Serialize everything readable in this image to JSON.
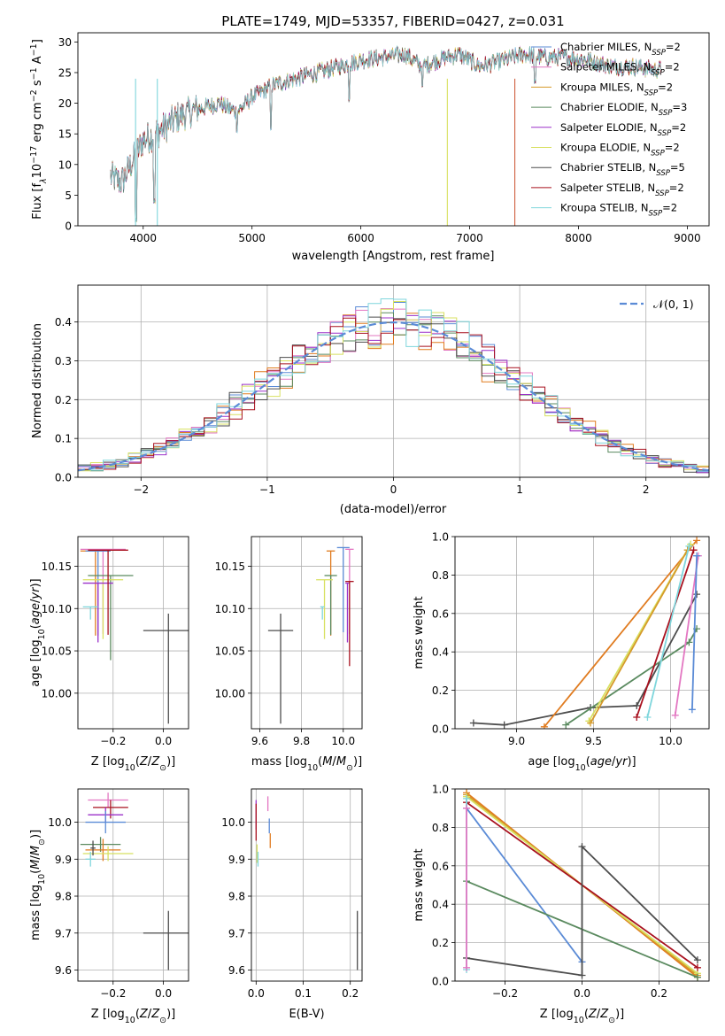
{
  "title_parts": [
    "PLATE=1749, MJD=53357, FIBERID=0427, z=0.031"
  ],
  "colors": {
    "grid": "#b0b0b0",
    "mainline": "#7fd6dc",
    "normal": "#5b8bd6"
  },
  "chart_data": [
    {
      "id": "spectrum",
      "type": "line",
      "title": "PLATE=1749, MJD=53357, FIBERID=0427, z=0.031",
      "xlabel": "wavelength [Angstrom, rest frame]",
      "ylabel_parts": [
        "Flux [f",
        "λ",
        "10",
        "−17",
        " erg cm",
        "−2",
        " s",
        "−1",
        " A",
        "−1",
        "]"
      ],
      "xlim": [
        3400,
        9200
      ],
      "ylim": [
        0,
        31.5
      ],
      "xticks": [
        4000,
        5000,
        6000,
        7000,
        8000,
        9000
      ],
      "yticks": [
        0,
        5,
        10,
        15,
        20,
        25,
        30
      ],
      "grid": false,
      "legend_loc": "upper right",
      "spectrum_shape": {
        "x": [
          3700,
          3800,
          3900,
          4000,
          4100,
          4200,
          4300,
          4500,
          4700,
          4860,
          5000,
          5200,
          5400,
          5600,
          5800,
          6000,
          6200,
          6400,
          6563,
          6700,
          6900,
          7100,
          7300,
          7500,
          7700,
          7900,
          8100,
          8300,
          8500,
          8700
        ],
        "y": [
          8,
          7,
          10.5,
          14,
          15,
          16,
          17.5,
          19,
          20,
          18.5,
          21,
          23,
          24,
          25,
          26,
          27,
          27.5,
          28,
          26,
          27,
          28,
          26,
          27,
          28,
          27.5,
          27.5,
          27,
          26,
          26,
          25.5
        ],
        "noise_amplitude": 2.5,
        "absorption_lines": [
          {
            "x": 3934,
            "y": 1
          },
          {
            "x": 4102,
            "y": 4
          },
          {
            "x": 4861,
            "y": 15.5
          },
          {
            "x": 5175,
            "y": 16
          },
          {
            "x": 5894,
            "y": 20.5
          },
          {
            "x": 6563,
            "y": 23
          },
          {
            "x": 7600,
            "y": 23.5
          }
        ],
        "dropouts": [
          {
            "x": 6795,
            "y": 0
          },
          {
            "x": 7415,
            "y": 0
          },
          {
            "x": 4130,
            "y": 0
          },
          {
            "x": 3930,
            "y": 0
          }
        ]
      },
      "series": [
        {
          "label": "Chabrier MILES, N",
          "sub": "SSP",
          "value_text": "=2",
          "color": "#5b8bd6"
        },
        {
          "label": "Salpeter MILES, N",
          "sub": "SSP",
          "value_text": "=2",
          "color": "#e377c2"
        },
        {
          "label": "Kroupa MILES, N",
          "sub": "SSP",
          "value_text": "=2",
          "color": "#d69a2a"
        },
        {
          "label": "Chabrier ELODIE, N",
          "sub": "SSP",
          "value_text": "=3",
          "color": "#5a8a5f"
        },
        {
          "label": "Salpeter ELODIE, N",
          "sub": "SSP",
          "value_text": "=2",
          "color": "#9b30c9"
        },
        {
          "label": "Kroupa ELODIE, N",
          "sub": "SSP",
          "value_text": "=2",
          "color": "#d8e060"
        },
        {
          "label": "Chabrier STELIB, N",
          "sub": "SSP",
          "value_text": "=5",
          "color": "#4d4d4d"
        },
        {
          "label": "Salpeter STELIB, N",
          "sub": "SSP",
          "value_text": "=2",
          "color": "#a8101e"
        },
        {
          "label": "Kroupa STELIB, N",
          "sub": "SSP",
          "value_text": "=2",
          "color": "#7fd6dc"
        }
      ]
    },
    {
      "id": "residuals",
      "type": "line",
      "xlabel": "(data-model)/error",
      "ylabel": "Normed distribution",
      "xlim": [
        -2.5,
        2.5
      ],
      "ylim": [
        0,
        0.495
      ],
      "xticks": [
        -2,
        -1,
        0,
        1,
        2
      ],
      "yticks": [
        0.0,
        0.1,
        0.2,
        0.3,
        0.4
      ],
      "grid": true,
      "legend_loc": "upper right",
      "legend": "𝒩(0, 1)",
      "normal_curve": {
        "mu": 0,
        "sigma": 1,
        "color": "#5b8bd6",
        "style": "dashed"
      },
      "histogram_bin_edges_range": [
        -2.5,
        2.5
      ],
      "histogram_bin_count": 50,
      "histogram_colors": [
        "#5b8bd6",
        "#e377c2",
        "#e07b1f",
        "#5a8a5f",
        "#9b30c9",
        "#d8e060",
        "#4d4d4d",
        "#a8101e",
        "#7fd6dc"
      ]
    },
    {
      "id": "age-vs-z",
      "type": "scatter",
      "xlabel": "Z [log10(Z/Z⊙)]",
      "ylabel": "age  [log10(age/yr)]",
      "xlim": [
        -0.34,
        0.1
      ],
      "ylim": [
        9.958,
        10.185
      ],
      "xticks": [
        -0.2,
        0.0
      ],
      "yticks": [
        10.0,
        10.05,
        10.1,
        10.15
      ],
      "grid": true,
      "points": [
        {
          "x": -0.24,
          "y": 10.17,
          "xerr": [
            0.09,
            0.09
          ],
          "yerr": [
            0.1,
            0.0
          ],
          "color": "#e377c2"
        },
        {
          "x": -0.27,
          "y": 10.168,
          "xerr": [
            0.06,
            0.06
          ],
          "yerr": [
            0.1,
            0.0
          ],
          "color": "#e07b1f"
        },
        {
          "x": -0.26,
          "y": 10.168,
          "xerr": [
            0.05,
            0.05
          ],
          "yerr": [
            0.1,
            0.0
          ],
          "color": "#5b8bd6"
        },
        {
          "x": -0.21,
          "y": 10.139,
          "xerr": [
            0.09,
            0.09
          ],
          "yerr": [
            0.1,
            0.0
          ],
          "color": "#5a8a5f"
        },
        {
          "x": -0.24,
          "y": 10.134,
          "xerr": [
            0.08,
            0.08
          ],
          "yerr": [
            0.07,
            0.0
          ],
          "color": "#d8e060"
        },
        {
          "x": -0.26,
          "y": 10.13,
          "xerr": [
            0.06,
            0.06
          ],
          "yerr": [
            0.07,
            0.0
          ],
          "color": "#9b30c9"
        },
        {
          "x": -0.22,
          "y": 10.169,
          "xerr": [
            0.08,
            0.08
          ],
          "yerr": [
            0.1,
            0.0
          ],
          "color": "#a8101e"
        },
        {
          "x": -0.29,
          "y": 10.102,
          "xerr": [
            0.03,
            0.03
          ],
          "yerr": [
            0.015,
            0.0
          ],
          "color": "#7fd6dc"
        },
        {
          "x": 0.02,
          "y": 10.074,
          "xerr": [
            0.1,
            0.1
          ],
          "yerr": [
            0.11,
            0.02
          ],
          "color": "#4d4d4d"
        }
      ]
    },
    {
      "id": "age-vs-mass",
      "type": "scatter",
      "xlabel": "mass [log10(M/M⊙)]",
      "xlim": [
        9.56,
        10.09
      ],
      "ylim": [
        9.958,
        10.185
      ],
      "xticks": [
        9.6,
        9.8,
        10.0
      ],
      "yticks": [
        10.0,
        10.05,
        10.1,
        10.15
      ],
      "grid": true,
      "points": [
        {
          "x": 10.03,
          "y": 10.17,
          "xerr": [
            0.02,
            0.02
          ],
          "yerr": [
            0.1,
            0.0
          ],
          "color": "#e377c2"
        },
        {
          "x": 9.94,
          "y": 10.168,
          "xerr": [
            0.02,
            0.02
          ],
          "yerr": [
            0.1,
            0.0
          ],
          "color": "#e07b1f"
        },
        {
          "x": 10.0,
          "y": 10.172,
          "xerr": [
            0.03,
            0.03
          ],
          "yerr": [
            0.1,
            0.0
          ],
          "color": "#5b8bd6"
        },
        {
          "x": 9.94,
          "y": 10.139,
          "xerr": [
            0.03,
            0.03
          ],
          "yerr": [
            0.07,
            0.0
          ],
          "color": "#5a8a5f"
        },
        {
          "x": 9.91,
          "y": 10.134,
          "xerr": [
            0.04,
            0.04
          ],
          "yerr": [
            0.07,
            0.0
          ],
          "color": "#d8e060"
        },
        {
          "x": 10.02,
          "y": 10.13,
          "xerr": [
            0.01,
            0.01
          ],
          "yerr": [
            0.07,
            0.0
          ],
          "color": "#9b30c9"
        },
        {
          "x": 10.03,
          "y": 10.132,
          "xerr": [
            0.02,
            0.02
          ],
          "yerr": [
            0.1,
            0.0
          ],
          "color": "#a8101e"
        },
        {
          "x": 9.9,
          "y": 10.102,
          "xerr": [
            0.01,
            0.01
          ],
          "yerr": [
            0.015,
            0.0
          ],
          "color": "#7fd6dc"
        },
        {
          "x": 9.7,
          "y": 10.074,
          "xerr": [
            0.06,
            0.06
          ],
          "yerr": [
            0.11,
            0.02
          ],
          "color": "#4d4d4d"
        }
      ]
    },
    {
      "id": "weight-vs-age",
      "type": "line",
      "xlabel": "age  [log10(age/yr)]",
      "ylabel": "mass weight",
      "xlim": [
        8.6,
        10.25
      ],
      "ylim": [
        0.0,
        1.0
      ],
      "xticks": [
        9.0,
        9.5,
        10.0
      ],
      "yticks": [
        0.0,
        0.2,
        0.4,
        0.6,
        0.8,
        1.0
      ],
      "grid": true,
      "series": [
        {
          "color": "#4d4d4d",
          "x": [
            8.72,
            8.92,
            9.48,
            9.78,
            10.17
          ],
          "y": [
            0.03,
            0.02,
            0.11,
            0.12,
            0.7
          ]
        },
        {
          "color": "#e07b1f",
          "x": [
            9.18,
            10.17
          ],
          "y": [
            0.01,
            0.98
          ]
        },
        {
          "color": "#5a8a5f",
          "x": [
            9.32,
            10.12,
            10.17
          ],
          "y": [
            0.02,
            0.45,
            0.52
          ]
        },
        {
          "color": "#d8e060",
          "x": [
            9.47,
            10.13
          ],
          "y": [
            0.04,
            0.96
          ]
        },
        {
          "color": "#d69a2a",
          "x": [
            9.48,
            10.11
          ],
          "y": [
            0.03,
            0.93
          ]
        },
        {
          "color": "#a8101e",
          "x": [
            9.78,
            10.15
          ],
          "y": [
            0.06,
            0.93
          ]
        },
        {
          "color": "#7fd6dc",
          "x": [
            9.85,
            10.12
          ],
          "y": [
            0.06,
            0.95
          ]
        },
        {
          "color": "#e377c2",
          "x": [
            10.03,
            10.18
          ],
          "y": [
            0.07,
            0.9
          ]
        },
        {
          "color": "#5b8bd6",
          "x": [
            10.14,
            10.17
          ],
          "y": [
            0.1,
            0.9
          ]
        }
      ]
    },
    {
      "id": "mass-vs-z",
      "type": "scatter",
      "xlabel": "Z [log10(Z/Z⊙)]",
      "ylabel": "mass [log10(M/M⊙)]",
      "xlim": [
        -0.34,
        0.1
      ],
      "ylim": [
        9.57,
        10.09
      ],
      "xticks": [
        -0.2,
        0.0
      ],
      "yticks": [
        9.6,
        9.7,
        9.8,
        9.9,
        10.0
      ],
      "grid": true,
      "points": [
        {
          "x": -0.22,
          "y": 10.06,
          "xerr": [
            0.08,
            0.08
          ],
          "yerr": [
            0.02,
            0.02
          ],
          "color": "#e377c2"
        },
        {
          "x": -0.21,
          "y": 10.04,
          "xerr": [
            0.07,
            0.07
          ],
          "yerr": [
            0.03,
            0.02
          ],
          "color": "#a8101e"
        },
        {
          "x": -0.23,
          "y": 10.02,
          "xerr": [
            0.07,
            0.07
          ],
          "yerr": [
            0.02,
            0.02
          ],
          "color": "#9b30c9"
        },
        {
          "x": -0.23,
          "y": 10.0,
          "xerr": [
            0.08,
            0.08
          ],
          "yerr": [
            0.03,
            0.03
          ],
          "color": "#5b8bd6"
        },
        {
          "x": -0.25,
          "y": 9.94,
          "xerr": [
            0.08,
            0.08
          ],
          "yerr": [
            0.02,
            0.02
          ],
          "color": "#5a8a5f"
        },
        {
          "x": -0.24,
          "y": 9.925,
          "xerr": [
            0.07,
            0.07
          ],
          "yerr": [
            0.03,
            0.03
          ],
          "color": "#e07b1f"
        },
        {
          "x": -0.22,
          "y": 9.915,
          "xerr": [
            0.1,
            0.1
          ],
          "yerr": [
            0.02,
            0.02
          ],
          "color": "#d8e060"
        },
        {
          "x": -0.28,
          "y": 9.93,
          "xerr": [
            0.01,
            0.01
          ],
          "yerr": [
            0.02,
            0.02
          ],
          "color": "#4d4d4d"
        },
        {
          "x": -0.29,
          "y": 9.9,
          "xerr": [
            0.02,
            0.02
          ],
          "yerr": [
            0.02,
            0.02
          ],
          "color": "#7fd6dc"
        },
        {
          "x": 0.02,
          "y": 9.7,
          "xerr": [
            0.1,
            0.1
          ],
          "yerr": [
            0.1,
            0.06
          ],
          "color": "#4d4d4d"
        }
      ]
    },
    {
      "id": "mass-vs-ebv",
      "type": "scatter",
      "xlabel": "E(B-V)",
      "xlim": [
        -0.01,
        0.225
      ],
      "ylim": [
        9.57,
        10.09
      ],
      "xticks": [
        0.0,
        0.1,
        0.2
      ],
      "yticks": [
        9.6,
        9.7,
        9.8,
        9.9,
        10.0
      ],
      "grid": true,
      "points": [
        {
          "x": 0.0,
          "y": 10.02,
          "xerr": [
            0.0,
            0.0
          ],
          "yerr": [
            0.04,
            0.04
          ],
          "color": "#9b30c9"
        },
        {
          "x": 0.0,
          "y": 10.0,
          "xerr": [
            0.0,
            0.0
          ],
          "yerr": [
            0.05,
            0.05
          ],
          "color": "#a8101e"
        },
        {
          "x": 0.025,
          "y": 10.05,
          "xerr": [
            0.0,
            0.0
          ],
          "yerr": [
            0.02,
            0.02
          ],
          "color": "#e377c2"
        },
        {
          "x": 0.028,
          "y": 9.99,
          "xerr": [
            0.0,
            0.0
          ],
          "yerr": [
            0.02,
            0.02
          ],
          "color": "#5b8bd6"
        },
        {
          "x": 0.03,
          "y": 9.95,
          "xerr": [
            0.0,
            0.0
          ],
          "yerr": [
            0.02,
            0.02
          ],
          "color": "#e07b1f"
        },
        {
          "x": 0.002,
          "y": 9.92,
          "xerr": [
            0.0,
            0.0
          ],
          "yerr": [
            0.03,
            0.02
          ],
          "color": "#d8e060"
        },
        {
          "x": 0.004,
          "y": 9.9,
          "xerr": [
            0.0,
            0.0
          ],
          "yerr": [
            0.02,
            0.02
          ],
          "color": "#7fd6dc"
        },
        {
          "x": 0.215,
          "y": 9.68,
          "xerr": [
            0.0,
            0.0
          ],
          "yerr": [
            0.08,
            0.08
          ],
          "color": "#4d4d4d"
        }
      ]
    },
    {
      "id": "weight-vs-z",
      "type": "line",
      "xlabel": "Z [log10(Z/Z⊙)]",
      "ylabel": "mass weight",
      "xlim": [
        -0.33,
        0.33
      ],
      "ylim": [
        0.0,
        1.0
      ],
      "xticks": [
        -0.2,
        0.0,
        0.2
      ],
      "yticks": [
        0.0,
        0.2,
        0.4,
        0.6,
        0.8,
        1.0
      ],
      "grid": true,
      "series": [
        {
          "color": "#e07b1f",
          "x": [
            -0.3,
            0.3
          ],
          "y": [
            0.98,
            0.02
          ]
        },
        {
          "color": "#d69a2a",
          "x": [
            -0.3,
            0.3
          ],
          "y": [
            0.97,
            0.03
          ]
        },
        {
          "color": "#d8e060",
          "x": [
            -0.3,
            0.3
          ],
          "y": [
            0.96,
            0.04
          ]
        },
        {
          "color": "#a8101e",
          "x": [
            -0.3,
            0.3
          ],
          "y": [
            0.93,
            0.07
          ]
        },
        {
          "color": "#5b8bd6",
          "x": [
            -0.3,
            0.0
          ],
          "y": [
            0.9,
            0.1
          ]
        },
        {
          "color": "#5a8a5f",
          "x": [
            -0.3,
            0.3
          ],
          "y": [
            0.52,
            0.02
          ]
        },
        {
          "color": "#4d4d4d",
          "x": [
            -0.3,
            0.0,
            0.0,
            0.3
          ],
          "y": [
            0.12,
            0.03,
            0.7,
            0.11
          ]
        },
        {
          "color": "#7fd6dc",
          "x": [
            -0.3,
            -0.3
          ],
          "y": [
            0.06,
            0.95
          ]
        },
        {
          "color": "#e377c2",
          "x": [
            -0.3,
            -0.3
          ],
          "y": [
            0.07,
            0.9
          ]
        }
      ]
    }
  ]
}
